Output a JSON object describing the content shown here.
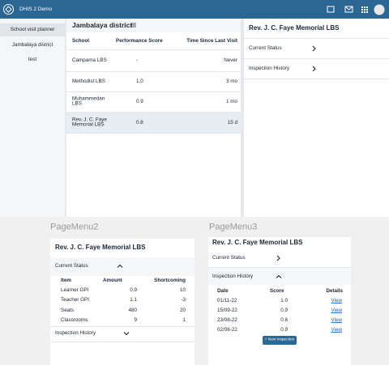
{
  "header": {
    "app_title": "DHIS 2 Demo"
  },
  "sidebar": {
    "items": [
      "School visit planner",
      "Jambalaya district",
      "test"
    ]
  },
  "main": {
    "title": "Jambalaya district",
    "table": {
      "columns": [
        "School",
        "Performance Score",
        "Time Since Last Visit"
      ],
      "rows": [
        [
          "Campama LBS",
          "-",
          "Never"
        ],
        [
          "Methodist LBS",
          "1.0",
          "3 mo"
        ],
        [
          "Muhammedan LBS",
          "0.9",
          "1 mo"
        ],
        [
          "Rev. J. C. Faye Memorial LBS",
          "0.8",
          "15 d"
        ]
      ]
    }
  },
  "detail": {
    "title": "Rev. J. C. Faye Memorial LBS",
    "sections": [
      "Current Status",
      "Inspection History"
    ]
  },
  "page_menu_2": {
    "label": "PageMenu2",
    "title": "Rev. J. C. Faye Memorial LBS",
    "current_status": "Current Status",
    "table": {
      "columns": [
        "Item",
        "Amount",
        "Shortcoming"
      ],
      "rows": [
        [
          "Learner GPI",
          "0.9",
          "10"
        ],
        [
          "Teacher GPI",
          "1.1",
          "-3"
        ],
        [
          "Seats",
          "480",
          "20"
        ],
        [
          "Classrooms",
          "9",
          "1"
        ]
      ]
    },
    "inspection_history": "Inspection History"
  },
  "page_menu_3": {
    "label": "PageMenu3",
    "title": "Rev. J. C. Faye Memorial LBS",
    "current_status": "Current Status",
    "inspection_history": "Inspection History",
    "table": {
      "columns": [
        "Date",
        "Score",
        "Details"
      ],
      "rows": [
        [
          "01/11-22",
          "1.0",
          "View"
        ],
        [
          "15/09-22",
          "0.9",
          "View"
        ],
        [
          "23/08-22",
          "0.8",
          "View"
        ],
        [
          "02/08-22",
          "0.9",
          "View"
        ]
      ]
    },
    "button": "+ New inspection"
  }
}
